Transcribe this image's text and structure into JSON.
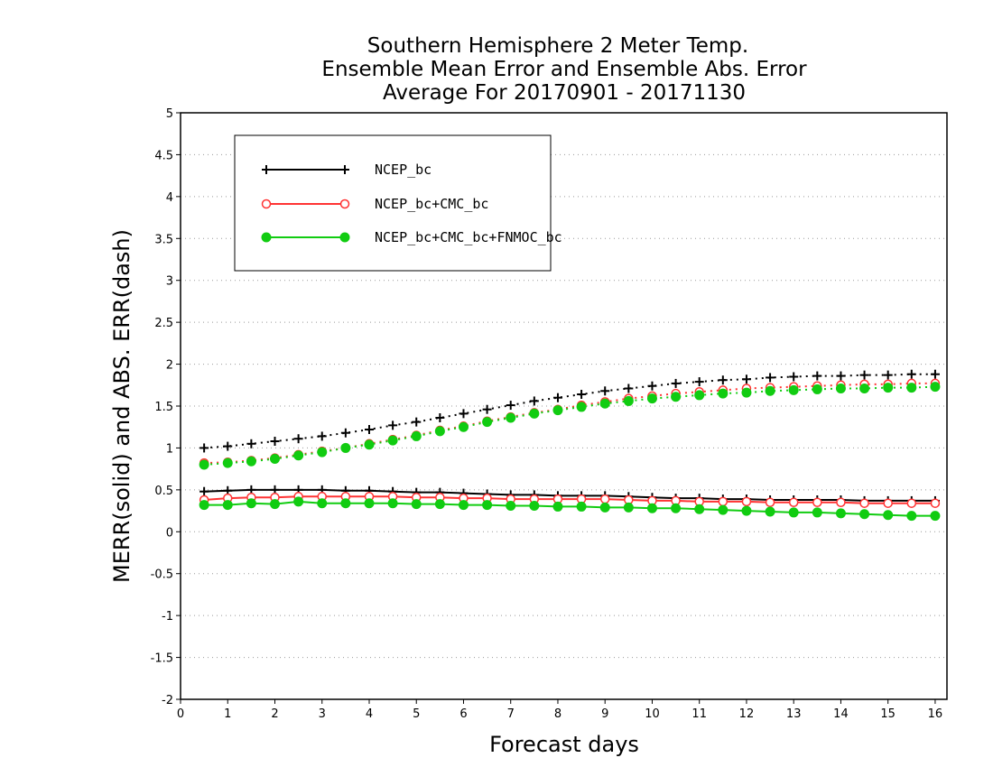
{
  "chart_data": {
    "type": "line",
    "title": [
      "Southern Hemisphere 2 Meter Temp.",
      "Ensemble Mean Error and Ensemble Abs. Error",
      "Average For 20170901 - 20171130"
    ],
    "xlabel": "Forecast days",
    "ylabel": "MERR(solid) and ABS. ERR(dash)",
    "xlim": [
      0,
      16.25
    ],
    "ylim": [
      -2,
      5
    ],
    "xticks": [
      0,
      1,
      2,
      3,
      4,
      5,
      6,
      7,
      8,
      9,
      10,
      11,
      12,
      13,
      14,
      15,
      16
    ],
    "xtick_labels": [
      "0",
      "1",
      "2",
      "3",
      "4",
      "5",
      "6",
      "7",
      "8",
      "9",
      "10",
      "11",
      "12",
      "13",
      "14",
      "15",
      "16"
    ],
    "yticks": [
      -2,
      -1.5,
      -1,
      -0.5,
      0,
      0.5,
      1,
      1.5,
      2,
      2.5,
      3,
      3.5,
      4,
      4.5,
      5
    ],
    "ytick_labels": [
      "-2",
      "-1.5",
      "-1",
      "-0.5",
      "0",
      "0.5",
      "1",
      "1.5",
      "2",
      "2.5",
      "3",
      "3.5",
      "4",
      "4.5",
      "5"
    ],
    "grid": true,
    "legend_position": "top-left",
    "x": [
      0.5,
      1,
      1.5,
      2,
      2.5,
      3,
      3.5,
      4,
      4.5,
      5,
      5.5,
      6,
      6.5,
      7,
      7.5,
      8,
      8.5,
      9,
      9.5,
      10,
      10.5,
      11,
      11.5,
      12,
      12.5,
      13,
      13.5,
      14,
      14.5,
      15,
      15.5,
      16
    ],
    "series": [
      {
        "name": "NCEP_bc",
        "color": "#000000",
        "marker": "plus",
        "merr": [
          0.48,
          0.49,
          0.5,
          0.5,
          0.5,
          0.5,
          0.49,
          0.49,
          0.48,
          0.47,
          0.47,
          0.46,
          0.45,
          0.44,
          0.44,
          0.43,
          0.43,
          0.43,
          0.42,
          0.41,
          0.4,
          0.4,
          0.39,
          0.39,
          0.38,
          0.38,
          0.38,
          0.38,
          0.37,
          0.37,
          0.37,
          0.37
        ],
        "abs_err": [
          1.0,
          1.02,
          1.05,
          1.08,
          1.11,
          1.14,
          1.18,
          1.22,
          1.27,
          1.31,
          1.36,
          1.41,
          1.46,
          1.51,
          1.56,
          1.6,
          1.64,
          1.68,
          1.71,
          1.74,
          1.77,
          1.79,
          1.81,
          1.82,
          1.84,
          1.85,
          1.86,
          1.86,
          1.87,
          1.87,
          1.88,
          1.88
        ]
      },
      {
        "name": "NCEP_bc+CMC_bc",
        "color": "#ff3333",
        "marker": "open-circle",
        "merr": [
          0.38,
          0.4,
          0.41,
          0.41,
          0.42,
          0.42,
          0.42,
          0.42,
          0.42,
          0.41,
          0.41,
          0.4,
          0.4,
          0.39,
          0.39,
          0.39,
          0.39,
          0.39,
          0.38,
          0.37,
          0.37,
          0.36,
          0.36,
          0.36,
          0.35,
          0.35,
          0.35,
          0.35,
          0.34,
          0.34,
          0.34,
          0.34
        ],
        "abs_err": [
          0.82,
          0.83,
          0.85,
          0.88,
          0.92,
          0.96,
          1.0,
          1.05,
          1.1,
          1.15,
          1.21,
          1.26,
          1.32,
          1.37,
          1.42,
          1.46,
          1.51,
          1.55,
          1.59,
          1.62,
          1.65,
          1.67,
          1.69,
          1.71,
          1.72,
          1.73,
          1.74,
          1.75,
          1.76,
          1.76,
          1.77,
          1.77
        ]
      },
      {
        "name": "NCEP_bc+CMC_bc+FNMOC_bc",
        "color": "#11cc11",
        "marker": "filled-circle",
        "merr": [
          0.32,
          0.32,
          0.34,
          0.33,
          0.36,
          0.34,
          0.34,
          0.34,
          0.34,
          0.33,
          0.33,
          0.32,
          0.32,
          0.31,
          0.31,
          0.3,
          0.3,
          0.29,
          0.29,
          0.28,
          0.28,
          0.27,
          0.26,
          0.25,
          0.24,
          0.23,
          0.23,
          0.22,
          0.21,
          0.2,
          0.19,
          0.19
        ],
        "abs_err": [
          0.8,
          0.82,
          0.84,
          0.87,
          0.91,
          0.95,
          1.0,
          1.04,
          1.09,
          1.14,
          1.2,
          1.25,
          1.31,
          1.36,
          1.41,
          1.45,
          1.49,
          1.53,
          1.56,
          1.59,
          1.61,
          1.63,
          1.65,
          1.66,
          1.68,
          1.69,
          1.7,
          1.71,
          1.71,
          1.72,
          1.72,
          1.73
        ]
      }
    ]
  }
}
